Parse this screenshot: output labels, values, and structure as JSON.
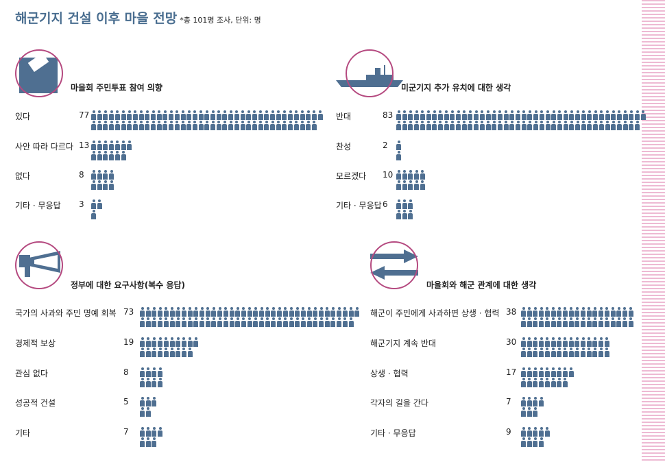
{
  "title": "해군기지 건설 이후 마을 전망",
  "note": "*총 101명 조사, 단위: 명",
  "colors": {
    "icon": "#4f6f91",
    "circle": "#b54a80",
    "title": "#4a6e90"
  },
  "sections": [
    {
      "title": "마을회 주민투표 참여 의향",
      "icon": "ballot-box-icon",
      "rows": [
        {
          "label": "있다",
          "value": 77
        },
        {
          "label": "사안 따라 다르다",
          "value": 13
        },
        {
          "label": "없다",
          "value": 8
        },
        {
          "label": "기타 · 무응답",
          "value": 3
        }
      ]
    },
    {
      "title": "미군기지 추가 유치에 대한 생각",
      "icon": "warship-icon",
      "rows": [
        {
          "label": "반대",
          "value": 83
        },
        {
          "label": "찬성",
          "value": 2
        },
        {
          "label": "모르겠다",
          "value": 10
        },
        {
          "label": "기타 · 무응답",
          "value": 6
        }
      ]
    },
    {
      "title": "정부에 대한 요구사항(복수 응답)",
      "icon": "megaphone-icon",
      "rows": [
        {
          "label": "국가의 사과와 주민 명예 회복",
          "value": 73
        },
        {
          "label": "경제적 보상",
          "value": 19
        },
        {
          "label": "관심 없다",
          "value": 8
        },
        {
          "label": "성공적 건설",
          "value": 5
        },
        {
          "label": "기타",
          "value": 7
        }
      ]
    },
    {
      "title": "마을회와 해군 관계에 대한 생각",
      "icon": "exchange-arrows-icon",
      "rows": [
        {
          "label": "해군이 주민에게 사과하면 상생 · 협력",
          "value": 38
        },
        {
          "label": "해군기지 계속 반대",
          "value": 30
        },
        {
          "label": "상생 · 협력",
          "value": 17
        },
        {
          "label": "각자의 길을 간다",
          "value": 7
        },
        {
          "label": "기타 · 무응답",
          "value": 9
        }
      ]
    }
  ]
}
